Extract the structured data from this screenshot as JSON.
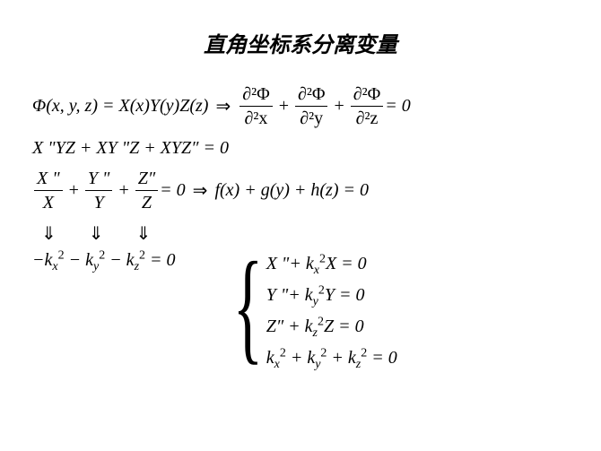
{
  "title": "直角坐标系分离变量",
  "line1_left": "Φ(x, y, z) = X(x)Y(y)Z(z)",
  "line1_arrow": "⇒",
  "frac1_num": "∂²Φ",
  "frac1_den": "∂²x",
  "frac2_num": "∂²Φ",
  "frac2_den": "∂²y",
  "frac3_num": "∂²Φ",
  "frac3_den": "∂²z",
  "eq_zero": " = 0",
  "plus": "+",
  "line2": "X \"YZ + XY \"Z + XYZ″ = 0",
  "fracX_num": "X \"",
  "fracX_den": "X",
  "fracY_num": "Y \"",
  "fracY_den": "Y",
  "fracZ_num": "Z″",
  "fracZ_den": "Z",
  "line3_right": " = 0 ",
  "line3_arrow": "⇒",
  "line3_fgh": " f(x) + g(y) + h(z) = 0",
  "darrow": "⇓",
  "line5_pre": "−k",
  "line5_mid1": " − k",
  "line5_mid2": " − k",
  "line5_end": " = 0",
  "sub_x": "x",
  "sub_y": "y",
  "sub_z": "z",
  "sup_2": "2",
  "brace_eq1_a": "X \"+ k",
  "brace_eq1_b": "X = 0",
  "brace_eq2_a": "Y \"+ k",
  "brace_eq2_b": "Y = 0",
  "brace_eq3_a": "Z″ + k",
  "brace_eq3_b": "Z = 0",
  "brace_eq4_a": "k",
  "brace_eq4_b": " + k",
  "brace_eq4_c": " + k",
  "brace_eq4_d": " = 0",
  "brace_char": "{",
  "colors": {
    "text": "#000000",
    "background": "#ffffff"
  }
}
